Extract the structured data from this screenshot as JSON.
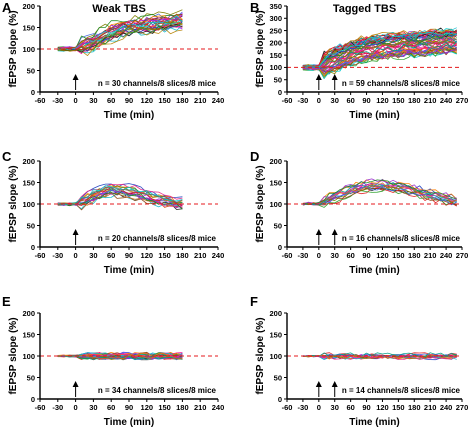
{
  "chart_data": [
    {
      "panel": "A",
      "title": "Weak TBS",
      "type": "line",
      "xlabel": "Time (min)",
      "ylabel": "fEPSP slope (%)",
      "xlim": [
        -60,
        240
      ],
      "ylim": [
        0,
        200
      ],
      "xticks": [
        -60,
        -30,
        0,
        30,
        60,
        90,
        120,
        150,
        180,
        210,
        240
      ],
      "yticks": [
        0,
        50,
        100,
        150,
        200
      ],
      "n_series": 30,
      "baseline": 100,
      "arrows": [
        0
      ],
      "annotation": "n = 30 channels/8 slices/8 mice",
      "series_x_range": [
        -30,
        180
      ],
      "shape": [
        [
          -30,
          100
        ],
        [
          0,
          100
        ],
        [
          30,
          115
        ],
        [
          60,
          138
        ],
        [
          90,
          150
        ],
        [
          120,
          155
        ],
        [
          150,
          160
        ],
        [
          180,
          165
        ]
      ],
      "spread": 22
    },
    {
      "panel": "B",
      "title": "Tagged TBS",
      "type": "line",
      "xlabel": "Time (min)",
      "ylabel": "fEPSP slope (%)",
      "xlim": [
        -60,
        270
      ],
      "ylim": [
        0,
        350
      ],
      "xticks": [
        -60,
        -30,
        0,
        30,
        60,
        90,
        120,
        150,
        180,
        210,
        240,
        270
      ],
      "yticks": [
        0,
        50,
        100,
        150,
        200,
        250,
        300,
        350
      ],
      "n_series": 59,
      "baseline": 100,
      "arrows": [
        0,
        30
      ],
      "annotation": "n = 59 channels/8 slices/8 mice",
      "series_x_range": [
        -30,
        260
      ],
      "shape": [
        [
          -30,
          100
        ],
        [
          0,
          100
        ],
        [
          30,
          130
        ],
        [
          60,
          160
        ],
        [
          90,
          175
        ],
        [
          120,
          185
        ],
        [
          150,
          190
        ],
        [
          180,
          195
        ],
        [
          210,
          200
        ],
        [
          240,
          205
        ],
        [
          260,
          205
        ]
      ],
      "spread": 45
    },
    {
      "panel": "C",
      "type": "line",
      "xlabel": "Time (min)",
      "ylabel": "fEPSP slope (%)",
      "xlim": [
        -60,
        240
      ],
      "ylim": [
        0,
        200
      ],
      "xticks": [
        -60,
        -30,
        0,
        30,
        60,
        90,
        120,
        150,
        180,
        210,
        240
      ],
      "yticks": [
        0,
        50,
        100,
        150,
        200
      ],
      "n_series": 20,
      "baseline": 100,
      "arrows": [
        0
      ],
      "annotation": "n = 20 channels/8 slices/8 mice",
      "series_x_range": [
        -30,
        180
      ],
      "shape": [
        [
          -30,
          100
        ],
        [
          0,
          100
        ],
        [
          30,
          120
        ],
        [
          60,
          135
        ],
        [
          90,
          130
        ],
        [
          120,
          120
        ],
        [
          150,
          108
        ],
        [
          180,
          100
        ]
      ],
      "spread": 14
    },
    {
      "panel": "D",
      "type": "line",
      "xlabel": "Time (min)",
      "ylabel": "fEPSP slope (%)",
      "xlim": [
        -60,
        270
      ],
      "ylim": [
        0,
        200
      ],
      "xticks": [
        -60,
        -30,
        0,
        30,
        60,
        90,
        120,
        150,
        180,
        210,
        240,
        270
      ],
      "yticks": [
        0,
        50,
        100,
        150,
        200
      ],
      "n_series": 16,
      "baseline": 100,
      "arrows": [
        0,
        30
      ],
      "annotation": "n = 16 channels/8 slices/8 mice",
      "series_x_range": [
        -30,
        260
      ],
      "shape": [
        [
          -30,
          100
        ],
        [
          0,
          100
        ],
        [
          30,
          115
        ],
        [
          60,
          130
        ],
        [
          90,
          140
        ],
        [
          120,
          142
        ],
        [
          150,
          138
        ],
        [
          180,
          130
        ],
        [
          210,
          120
        ],
        [
          240,
          112
        ],
        [
          260,
          105
        ]
      ],
      "spread": 12
    },
    {
      "panel": "E",
      "type": "line",
      "xlabel": "Time (min)",
      "ylabel": "fEPSP slope (%)",
      "xlim": [
        -60,
        240
      ],
      "ylim": [
        0,
        200
      ],
      "xticks": [
        -60,
        -30,
        0,
        30,
        60,
        90,
        120,
        150,
        180,
        210,
        240
      ],
      "yticks": [
        0,
        50,
        100,
        150,
        200
      ],
      "n_series": 34,
      "baseline": 100,
      "arrows": [
        0
      ],
      "annotation": "n = 34 channels/8 slices/8 mice",
      "series_x_range": [
        -30,
        180
      ],
      "shape": [
        [
          -30,
          100
        ],
        [
          180,
          100
        ]
      ],
      "spread": 5
    },
    {
      "panel": "F",
      "type": "line",
      "xlabel": "Time (min)",
      "ylabel": "fEPSP slope (%)",
      "xlim": [
        -60,
        270
      ],
      "ylim": [
        0,
        200
      ],
      "xticks": [
        -60,
        -30,
        0,
        30,
        60,
        90,
        120,
        150,
        180,
        210,
        240,
        270
      ],
      "yticks": [
        0,
        50,
        100,
        150,
        200
      ],
      "n_series": 14,
      "baseline": 100,
      "arrows": [
        0,
        30
      ],
      "annotation": "n = 14 channels/8 slices/8 mice",
      "series_x_range": [
        -30,
        260
      ],
      "shape": [
        [
          -30,
          100
        ],
        [
          260,
          100
        ]
      ],
      "spread": 5
    }
  ],
  "colors": {
    "baseline": "#e41a1c",
    "series_palette": [
      "#1f1f1f",
      "#e41a1c",
      "#1f3fbf",
      "#2ca02c",
      "#a020f0",
      "#ff7f00",
      "#e7298a",
      "#17becf",
      "#8b4513",
      "#808000",
      "#ff1493",
      "#4169e1",
      "#00a087",
      "#d2691e",
      "#9932cc",
      "#228b22",
      "#b8860b",
      "#dc143c",
      "#00ced1",
      "#696969"
    ]
  }
}
